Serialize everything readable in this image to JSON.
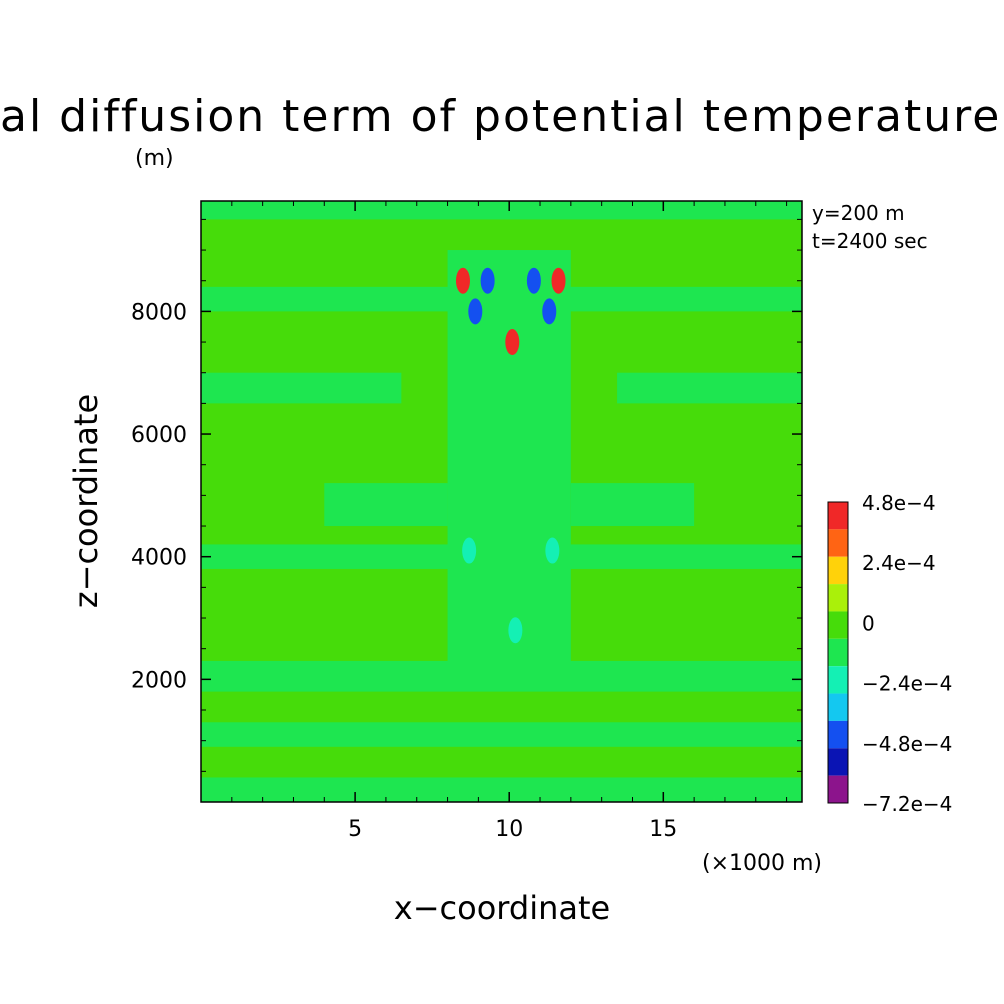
{
  "chart_data": {
    "type": "heatmap",
    "title": "al diffusion term of potential temperature (",
    "xlabel": "x−coordinate",
    "ylabel": "z−coordinate",
    "x_unit": "(×1000 m)",
    "y_unit": "(m)",
    "xlim": [
      0,
      19.5
    ],
    "ylim": [
      0,
      9800
    ],
    "x_ticks": [
      5,
      10,
      15
    ],
    "y_ticks": [
      2000,
      4000,
      6000,
      8000
    ],
    "x_tick_labels": [
      "5",
      "10",
      "15"
    ],
    "y_tick_labels": [
      "2000",
      "4000",
      "6000",
      "8000"
    ],
    "annotations": [
      "y=200 m",
      "t=2400 sec"
    ],
    "colorbar": {
      "tick_labels": [
        "4.8e−4",
        "2.4e−4",
        "0",
        "−2.4e−4",
        "−4.8e−4",
        "−7.2e−4"
      ],
      "levels": [
        0.00048,
        0.00036,
        0.00024,
        0.00012,
        0,
        -0.00012,
        -0.00024,
        -0.00036,
        -0.00048,
        -0.0006,
        -0.00072
      ],
      "colors": [
        "#f02828",
        "#ff6414",
        "#ffd20a",
        "#aaf00a",
        "#46dc0a",
        "#1ee650",
        "#14f0b4",
        "#14c8f0",
        "#1450f0",
        "#0a14b4",
        "#8c148c"
      ]
    },
    "field": {
      "background_level": 0,
      "bands": [
        {
          "z": [
            0,
            9800
          ],
          "x": [
            0,
            19.5
          ],
          "level": 0
        },
        {
          "z": [
            9500,
            9800
          ],
          "x": [
            0,
            19.5
          ],
          "level": -0.00012
        },
        {
          "z": [
            8000,
            8400
          ],
          "x": [
            0,
            19.5
          ],
          "level": -0.00012
        },
        {
          "z": [
            6500,
            7000
          ],
          "x": [
            0,
            6.5
          ],
          "level": -0.00012
        },
        {
          "z": [
            6500,
            7000
          ],
          "x": [
            13.5,
            19.5
          ],
          "level": -0.00012
        },
        {
          "z": [
            4500,
            5200
          ],
          "x": [
            4,
            8
          ],
          "level": -0.00012
        },
        {
          "z": [
            4500,
            5200
          ],
          "x": [
            12,
            16
          ],
          "level": -0.00012
        },
        {
          "z": [
            3800,
            4200
          ],
          "x": [
            0,
            19.5
          ],
          "level": -0.00012
        },
        {
          "z": [
            1800,
            2300
          ],
          "x": [
            0,
            19.5
          ],
          "level": -0.00012
        },
        {
          "z": [
            900,
            1300
          ],
          "x": [
            0,
            19.5
          ],
          "level": -0.00012
        },
        {
          "z": [
            0,
            400
          ],
          "x": [
            0,
            19.5
          ],
          "level": -0.00012
        },
        {
          "z": [
            2000,
            9000
          ],
          "x": [
            8,
            12
          ],
          "level": -0.00012
        }
      ],
      "features": [
        {
          "x": 9.3,
          "z": 8500,
          "level": -0.00048
        },
        {
          "x": 10.8,
          "z": 8500,
          "level": -0.00048
        },
        {
          "x": 8.9,
          "z": 8000,
          "level": -0.00048
        },
        {
          "x": 11.3,
          "z": 8000,
          "level": -0.00048
        },
        {
          "x": 10.1,
          "z": 7500,
          "level": 0.00048
        },
        {
          "x": 8.5,
          "z": 8500,
          "level": 0.00048
        },
        {
          "x": 11.6,
          "z": 8500,
          "level": 0.00048
        },
        {
          "x": 10.2,
          "z": 2800,
          "level": -0.00024
        },
        {
          "x": 8.7,
          "z": 4100,
          "level": -0.00024
        },
        {
          "x": 11.4,
          "z": 4100,
          "level": -0.00024
        }
      ]
    }
  }
}
